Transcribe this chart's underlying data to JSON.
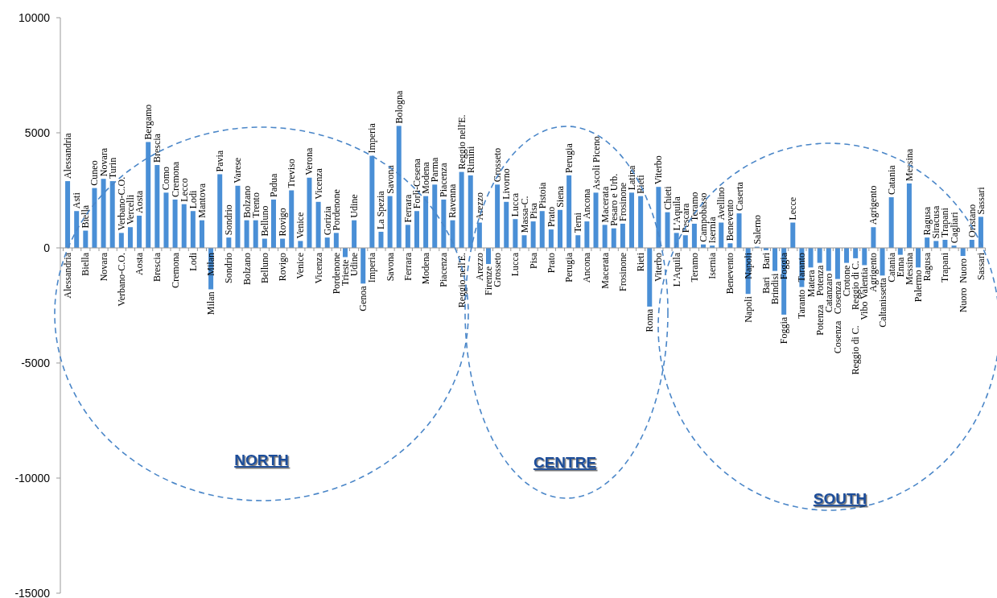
{
  "chart_data": {
    "type": "bar",
    "color": "#4a8fd6",
    "ylim": [
      -15000,
      10000
    ],
    "yticks": [
      -15000,
      -10000,
      -5000,
      0,
      5000,
      10000
    ],
    "categories": [
      "Alessandria",
      null,
      "Biella",
      null,
      "Novara",
      null,
      "Verbano-C.O.",
      null,
      "Aosta",
      null,
      "Brescia",
      null,
      "Cremona",
      null,
      "Lodi",
      null,
      "Milan",
      null,
      "Sondrio",
      null,
      "Bolzano",
      null,
      "Belluno",
      null,
      "Rovigo",
      null,
      "Venice",
      null,
      "Vicenza",
      null,
      "Pordenone",
      null,
      "Udine",
      null,
      "Imperia",
      null,
      "Savona",
      null,
      "Ferrara",
      null,
      "Modena",
      null,
      "Piacenza",
      null,
      "Reggio nell'E.",
      null,
      "Arezzo",
      null,
      "Grosseto",
      null,
      "Lucca",
      null,
      "Pisa",
      null,
      "Prato",
      null,
      "Perugia",
      null,
      "Ancona",
      null,
      "Macerata",
      null,
      "Frosinone",
      null,
      "Rieti",
      null,
      "Viterbo",
      null,
      "L'Aquila",
      null,
      "Teramo",
      null,
      "Isernia",
      null,
      "Benevento",
      null,
      "Napoli",
      null,
      "Bari",
      null,
      "Foggia",
      null,
      "Taranto",
      null,
      "Potenza",
      null,
      "Cosenza",
      null,
      "Reggio di C.",
      null,
      "Agrigento",
      null,
      "Catania",
      null,
      "Messina",
      null,
      "Ragusa",
      null,
      "Trapani",
      null,
      "Nuoro",
      null,
      "Sassari"
    ],
    "values": [
      2900,
      1600,
      750,
      2600,
      3000,
      2900,
      650,
      900,
      1400,
      4600,
      3600,
      2400,
      2100,
      1900,
      1600,
      1200,
      -1800,
      3200,
      450,
      2700,
      1200,
      1200,
      400,
      2100,
      400,
      2500,
      300,
      3050,
      2000,
      450,
      650,
      -400,
      1200,
      -1550,
      4000,
      700,
      2250,
      5300,
      1000,
      1600,
      2250,
      2750,
      2100,
      1200,
      3300,
      3150,
      1100,
      -700,
      2750,
      2000,
      1250,
      550,
      1150,
      1600,
      800,
      1650,
      3150,
      550,
      1150,
      2400,
      1000,
      850,
      1050,
      2400,
      2250,
      -2550,
      2650,
      1550,
      650,
      550,
      1050,
      150,
      100,
      1100,
      200,
      1500,
      -2000,
      50,
      -100,
      -1000,
      -2900,
      1100,
      -1700,
      -850,
      -650,
      -1000,
      -1350,
      -650,
      -450,
      -750,
      900,
      -1200,
      2200,
      -300,
      2800,
      -850,
      450,
      300,
      350,
      100,
      -350,
      350,
      1350
    ],
    "value_labels": [
      "Alessandria",
      "Asti",
      "Biella",
      "Cuneo",
      "Novara",
      "Turin",
      "Verbano-C.O.",
      "Vercelli",
      "Aosta",
      "Bergamo",
      "Brescia",
      "Como",
      "Cremona",
      "Lecco",
      "Lodi",
      "Mantova",
      "Milan",
      "Pavia",
      "Sondrio",
      "Varese",
      "Bolzano",
      "Trento",
      "Belluno",
      "Padua",
      "Rovigo",
      "Treviso",
      "Venice",
      "Verona",
      "Vicenza",
      "Gorizia",
      "Pordenone",
      "Trieste",
      "Udine",
      "Genoa",
      "Imperia",
      "La Spezia",
      "Savona",
      "Bologna",
      "Ferrara",
      "Forlì-Cesena",
      "Modena",
      "Parma",
      "Piacenza",
      "Ravenna",
      "Reggio nell'E.",
      "Rimini",
      "Arezzo",
      "Firenze",
      "Grosseto",
      "Livorno",
      "Lucca",
      "Massa-C.",
      "Pisa",
      "Pistoia",
      "Prato",
      "Siena",
      "Perugia",
      "Terni",
      "Ancona",
      "Ascoli Piceno",
      "Macerata",
      "Pesaro e Urb.",
      "Frosinone",
      "Latina",
      "Rieti",
      "Roma",
      "Viterbo",
      "Chieti",
      "L'Aquila",
      "Pescara",
      "Teramo",
      "Campobasso",
      "Isernia",
      "Avellino",
      "Benevento",
      "Caserta",
      "Napoli",
      "Salerno",
      "Bari",
      "Brindisi",
      "Foggia",
      "Lecce",
      "Taranto",
      "Matera",
      "Potenza",
      "Catanzaro",
      "Cosenza",
      "Crotone",
      "Reggio di C.",
      "Vibo Valentia",
      "Agrigento",
      "Caltanissetta",
      "Catania",
      "Enna",
      "Messina",
      "Palermo",
      "Ragusa",
      "Siracusa",
      "Trapani",
      "Cagliari",
      "Nuoro",
      "Oristano",
      "Sassari"
    ],
    "annotations": [
      "NORTH",
      "CENTRE",
      "SOUTH"
    ]
  }
}
